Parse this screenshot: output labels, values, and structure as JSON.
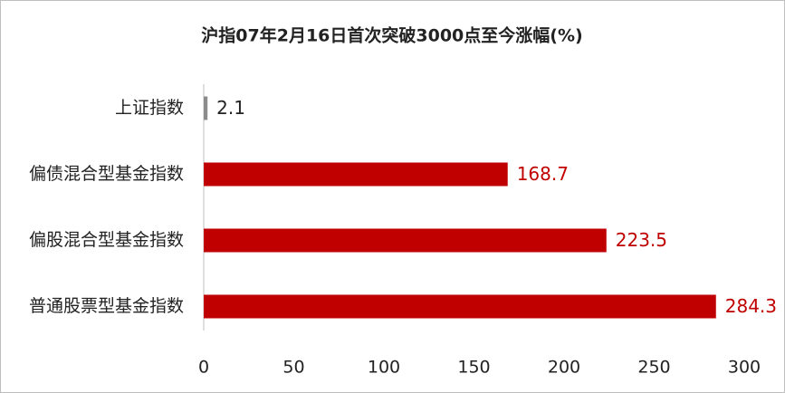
{
  "chart_data": {
    "type": "bar",
    "orientation": "horizontal",
    "title": "沪指07年2月16日首次突破3000点至今涨幅(%)",
    "categories": [
      "上证指数",
      "偏债混合型基金指数",
      "偏股混合型基金指数",
      "普通股票型基金指数"
    ],
    "values": [
      2.1,
      168.7,
      223.5,
      284.3
    ],
    "colors": [
      "#8c8c8c",
      "#c00000",
      "#c00000",
      "#c00000"
    ],
    "label_colors": [
      "#222222",
      "#c00000",
      "#c00000",
      "#c00000"
    ],
    "xlim": [
      0,
      300
    ],
    "xticks": [
      0,
      50,
      100,
      150,
      200,
      250,
      300
    ],
    "grid": false
  }
}
